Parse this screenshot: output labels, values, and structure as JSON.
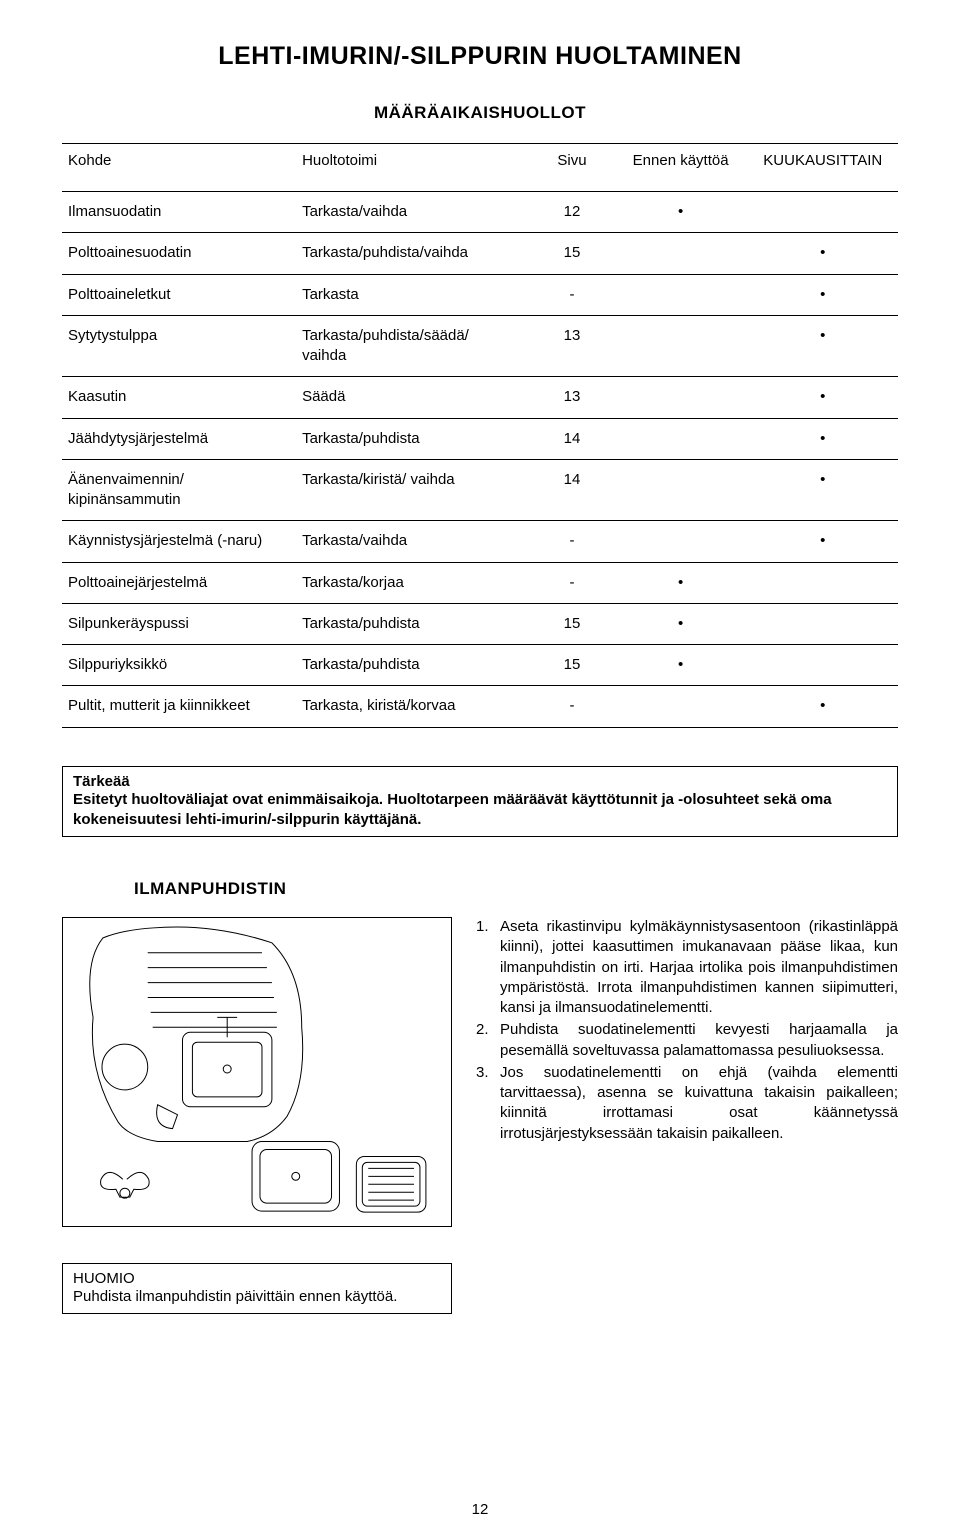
{
  "title": "LEHTI-IMURIN/-SILPPURIN HUOLTAMINEN",
  "subtitle": "MÄÄRÄAIKAISHUOLLOT",
  "table": {
    "headers": {
      "kohde": "Kohde",
      "toimi": "Huoltotoimi",
      "sivu": "Sivu",
      "ennen": "Ennen käyttöä",
      "kuukausi": "KUUKAUSITTAIN"
    },
    "rows": [
      {
        "kohde": "Ilmansuodatin",
        "toimi": "Tarkasta/vaihda",
        "sivu": "12",
        "ennen": "•",
        "kuukausi": ""
      },
      {
        "kohde": "Polttoainesuodatin",
        "toimi": "Tarkasta/puhdista/vaihda",
        "sivu": "15",
        "ennen": "",
        "kuukausi": "•"
      },
      {
        "kohde": "Polttoaineletkut",
        "toimi": "Tarkasta",
        "sivu": "-",
        "ennen": "",
        "kuukausi": "•"
      },
      {
        "kohde": "Sytytystulppa",
        "toimi": "Tarkasta/puhdista/säädä/\nvaihda",
        "sivu": "13",
        "ennen": "",
        "kuukausi": "•"
      },
      {
        "kohde": "Kaasutin",
        "toimi": "Säädä",
        "sivu": "13",
        "ennen": "",
        "kuukausi": "•"
      },
      {
        "kohde": "Jäähdytysjärjestelmä",
        "toimi": "Tarkasta/puhdista",
        "sivu": "14",
        "ennen": "",
        "kuukausi": "•"
      },
      {
        "kohde": "Äänenvaimennin/\nkipinänsammutin",
        "toimi": "Tarkasta/kiristä/ vaihda",
        "sivu": "14",
        "ennen": "",
        "kuukausi": "•"
      },
      {
        "kohde": "Käynnistysjärjestelmä (-naru)",
        "toimi": "Tarkasta/vaihda",
        "sivu": "-",
        "ennen": "",
        "kuukausi": "•"
      },
      {
        "kohde": "Polttoainejärjestelmä",
        "toimi": "Tarkasta/korjaa",
        "sivu": "-",
        "ennen": "•",
        "kuukausi": ""
      },
      {
        "kohde": "Silpunkeräyspussi",
        "toimi": "Tarkasta/puhdista",
        "sivu": "15",
        "ennen": "•",
        "kuukausi": ""
      },
      {
        "kohde": "Silppuriyksikkö",
        "toimi": "Tarkasta/puhdista",
        "sivu": "15",
        "ennen": "•",
        "kuukausi": ""
      },
      {
        "kohde": "Pultit, mutterit ja kiinnikkeet",
        "toimi": "Tarkasta, kiristä/korvaa",
        "sivu": "-",
        "ennen": "",
        "kuukausi": "•"
      }
    ]
  },
  "important": {
    "hdr": "Tärkeää",
    "body": "Esitetyt huoltoväliajat ovat enimmäisaikoja. Huoltotarpeen määräävät käyttötunnit ja -olosuhteet sekä oma kokeneisuutesi lehti-imurin/-silppurin käyttäjänä."
  },
  "section_title": "ILMANPUHDISTIN",
  "instructions": [
    "Aseta rikastinvipu kylmäkäynnistysasentoon (rikastinläppä kiinni), jottei kaasuttimen imukanavaan pääse likaa, kun ilmanpuhdistin on irti. Harjaa irtolika pois ilmanpuhdistimen ympäristöstä. Irrota ilmanpuhdistimen kannen siipimutteri, kansi ja ilmansuodatinelementti.",
    "Puhdista suodatinelementti kevyesti harjaamalla ja pesemällä soveltuvassa palamattomassa pesuliuoksessa.",
    "Jos suodatinelementti on ehjä (vaihda elementti tarvittaessa), asenna se kuivattuna takaisin paikalleen; kiinnitä irrottamasi osat käännetyssä irrotusjärjestyksessään takaisin paikalleen."
  ],
  "notice": {
    "hdr": "HUOMIO",
    "body": "Puhdista ilmanpuhdistin päivittäin ennen käyttöä."
  },
  "page_num": "12"
}
